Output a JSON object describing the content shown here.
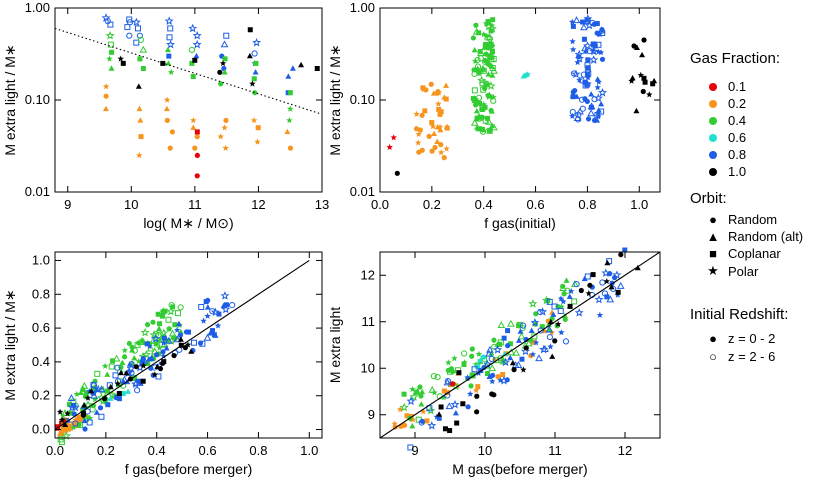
{
  "chart_data": [
    {
      "type": "scatter",
      "xlabel": "log( M∗ / M⊙)",
      "ylabel": "M extra light / M∗",
      "xlim": [
        8.8,
        13.0
      ],
      "ylim": [
        0.01,
        1.0
      ],
      "yscale": "log",
      "xticks": [
        "9",
        "10",
        "11",
        "12",
        "13"
      ],
      "yticks": [
        "0.01",
        "0.10",
        "1.00"
      ],
      "fit_line": {
        "style": "dotted",
        "x": [
          8.8,
          13.0
        ],
        "y": [
          0.6,
          0.07
        ]
      },
      "columns": [
        {
          "x": 9.65,
          "color": "blue",
          "y": [
            0.78,
            0.72,
            0.66
          ]
        },
        {
          "x": 9.85,
          "color": "black",
          "y": [
            0.28,
            0.25
          ]
        },
        {
          "x": 9.95,
          "color": "blue",
          "y": [
            0.75,
            0.7,
            0.62,
            0.5
          ]
        },
        {
          "x": 9.65,
          "color": "green",
          "y": [
            0.5,
            0.4,
            0.33,
            0.28,
            0.22
          ]
        },
        {
          "x": 9.62,
          "color": "orange",
          "y": [
            0.14,
            0.11,
            0.08
          ]
        },
        {
          "x": 10.1,
          "color": "blue",
          "y": [
            0.7,
            0.6,
            0.5,
            0.42
          ]
        },
        {
          "x": 10.15,
          "color": "green",
          "y": [
            0.45,
            0.35,
            0.28,
            0.22
          ]
        },
        {
          "x": 10.15,
          "color": "black",
          "y": [
            0.14
          ]
        },
        {
          "x": 10.15,
          "color": "orange",
          "y": [
            0.08,
            0.06,
            0.04,
            0.025
          ]
        },
        {
          "x": 10.6,
          "color": "blue",
          "y": [
            0.72,
            0.6,
            0.48,
            0.4,
            0.3
          ]
        },
        {
          "x": 10.6,
          "color": "green",
          "y": [
            0.35,
            0.25,
            0.2
          ]
        },
        {
          "x": 10.6,
          "color": "orange",
          "y": [
            0.1,
            0.08,
            0.06,
            0.045,
            0.03
          ]
        },
        {
          "x": 10.5,
          "color": "black",
          "y": [
            0.25
          ]
        },
        {
          "x": 11.0,
          "color": "blue",
          "y": [
            0.6,
            0.5,
            0.4,
            0.3
          ]
        },
        {
          "x": 11.0,
          "color": "green",
          "y": [
            0.35,
            0.25,
            0.18
          ]
        },
        {
          "x": 11.0,
          "color": "black",
          "y": [
            0.27
          ]
        },
        {
          "x": 11.0,
          "color": "orange",
          "y": [
            0.06,
            0.05,
            0.04,
            0.03
          ]
        },
        {
          "x": 11.0,
          "color": "red",
          "y": [
            0.045,
            0.025,
            0.015
          ]
        },
        {
          "x": 11.45,
          "color": "blue",
          "y": [
            0.5,
            0.4,
            0.3,
            0.22
          ]
        },
        {
          "x": 11.45,
          "color": "green",
          "y": [
            0.28,
            0.2,
            0.15
          ]
        },
        {
          "x": 11.45,
          "color": "orange",
          "y": [
            0.06,
            0.05,
            0.04,
            0.03
          ]
        },
        {
          "x": 11.4,
          "color": "black",
          "y": [
            0.25,
            0.2
          ]
        },
        {
          "x": 11.95,
          "color": "blue",
          "y": [
            0.42,
            0.32,
            0.25,
            0.2
          ]
        },
        {
          "x": 11.95,
          "color": "green",
          "y": [
            0.25,
            0.17,
            0.12
          ]
        },
        {
          "x": 11.95,
          "color": "orange",
          "y": [
            0.06,
            0.05,
            0.035
          ]
        },
        {
          "x": 11.9,
          "color": "black",
          "y": [
            0.58,
            0.3,
            0.15
          ]
        },
        {
          "x": 12.5,
          "color": "blue",
          "y": [
            0.22,
            0.18,
            0.12
          ]
        },
        {
          "x": 12.5,
          "color": "green",
          "y": [
            0.12,
            0.08,
            0.06
          ]
        },
        {
          "x": 12.5,
          "color": "orange",
          "y": [
            0.045,
            0.03
          ]
        },
        {
          "x": 12.65,
          "color": "black",
          "y": [
            0.24
          ]
        },
        {
          "x": 12.95,
          "color": "black",
          "y": [
            0.22
          ]
        }
      ]
    },
    {
      "type": "scatter",
      "xlabel": "f gas(initial)",
      "ylabel": "M extra light / M∗",
      "xlim": [
        0.0,
        1.08
      ],
      "ylim": [
        0.01,
        1.0
      ],
      "yscale": "log",
      "xticks": [
        "0.0",
        "0.2",
        "0.4",
        "0.6",
        "0.8",
        "1.0"
      ],
      "yticks": [
        "0.01",
        "0.10",
        "1.00"
      ],
      "clusters": [
        {
          "color": "red",
          "x": [
            0.02,
            0.06
          ],
          "y": [
            0.03,
            0.04
          ],
          "n": 2
        },
        {
          "color": "black",
          "x": [
            0.06,
            0.07
          ],
          "y": [
            0.015,
            0.016
          ],
          "n": 1
        },
        {
          "color": "orange",
          "x": [
            0.14,
            0.26
          ],
          "y": [
            0.022,
            0.15
          ],
          "n": 40
        },
        {
          "color": "green",
          "x": [
            0.36,
            0.44
          ],
          "y": [
            0.045,
            0.75
          ],
          "n": 110
        },
        {
          "color": "cyan",
          "x": [
            0.55,
            0.6
          ],
          "y": [
            0.16,
            0.24
          ],
          "n": 3
        },
        {
          "color": "blue",
          "x": [
            0.74,
            0.86
          ],
          "y": [
            0.06,
            0.78
          ],
          "n": 90
        },
        {
          "color": "black",
          "x": [
            0.97,
            1.06
          ],
          "y": [
            0.06,
            0.58
          ],
          "n": 14
        }
      ]
    },
    {
      "type": "scatter",
      "xlabel": "f gas(before merger)",
      "ylabel": "M extra light / M∗",
      "xlim": [
        0.0,
        1.05
      ],
      "ylim": [
        -0.05,
        1.05
      ],
      "xticks": [
        "0.0",
        "0.2",
        "0.4",
        "0.6",
        "0.8",
        "1.0"
      ],
      "yticks": [
        "0.0",
        "0.2",
        "0.4",
        "0.6",
        "0.8",
        "1.0"
      ],
      "fit_line": {
        "style": "solid",
        "x": [
          0.0,
          1.0
        ],
        "y": [
          0.0,
          1.0
        ]
      },
      "clusters": [
        {
          "color": "red",
          "x": [
            0.0,
            0.04
          ],
          "y": [
            0.0,
            0.05
          ],
          "n": 5
        },
        {
          "color": "orange",
          "x": [
            0.02,
            0.12
          ],
          "y": [
            -0.02,
            0.08
          ],
          "n": 50
        },
        {
          "color": "green",
          "x": [
            0.02,
            0.5
          ],
          "y": [
            0.0,
            0.7
          ],
          "n": 120
        },
        {
          "color": "cyan",
          "x": [
            0.2,
            0.35
          ],
          "y": [
            0.15,
            0.3
          ],
          "n": 3
        },
        {
          "color": "blue",
          "x": [
            0.05,
            0.7
          ],
          "y": [
            0.05,
            0.75
          ],
          "n": 100
        },
        {
          "color": "black",
          "x": [
            0.02,
            0.55
          ],
          "y": [
            0.05,
            0.55
          ],
          "n": 30
        }
      ]
    },
    {
      "type": "scatter",
      "xlabel": "M gas(before merger)",
      "ylabel": "M extra light",
      "xlim": [
        8.5,
        12.5
      ],
      "ylim": [
        8.5,
        12.5
      ],
      "xticks": [
        "9",
        "10",
        "11",
        "12"
      ],
      "yticks": [
        "9",
        "10",
        "11",
        "12"
      ],
      "fit_line": {
        "style": "solid",
        "x": [
          8.5,
          12.5
        ],
        "y": [
          8.5,
          12.5
        ]
      },
      "clusters": [
        {
          "color": "orange",
          "x": [
            8.7,
            11.0
          ],
          "y": [
            8.8,
            10.9
          ],
          "n": 30
        },
        {
          "color": "green",
          "x": [
            8.8,
            11.3
          ],
          "y": [
            9.0,
            11.6
          ],
          "n": 90
        },
        {
          "color": "cyan",
          "x": [
            9.6,
            10.4
          ],
          "y": [
            9.8,
            10.5
          ],
          "n": 4
        },
        {
          "color": "blue",
          "x": [
            8.9,
            12.0
          ],
          "y": [
            8.8,
            12.0
          ],
          "n": 90
        },
        {
          "color": "black",
          "x": [
            9.1,
            12.3
          ],
          "y": [
            8.8,
            12.3
          ],
          "n": 30
        },
        {
          "color": "red",
          "x": [
            9.4,
            9.6
          ],
          "y": [
            9.5,
            9.7
          ],
          "n": 1
        }
      ]
    }
  ],
  "palette": {
    "red": "#e8000b",
    "orange": "#f7941d",
    "green": "#33cc33",
    "cyan": "#22e0d0",
    "blue": "#1e5ee6",
    "black": "#000000"
  },
  "legend": {
    "gas_title": "Gas Fraction:",
    "gas_items": [
      {
        "label": "0.1",
        "color": "#e8000b"
      },
      {
        "label": "0.2",
        "color": "#f7941d"
      },
      {
        "label": "0.4",
        "color": "#33cc33"
      },
      {
        "label": "0.6",
        "color": "#22e0d0"
      },
      {
        "label": "0.8",
        "color": "#1e5ee6"
      },
      {
        "label": "1.0",
        "color": "#000000"
      }
    ],
    "orbit_title": "Orbit:",
    "orbit_items": [
      {
        "label": "Random",
        "symbol": "circle-icon"
      },
      {
        "label": "Random (alt)",
        "symbol": "triangle-icon"
      },
      {
        "label": "Coplanar",
        "symbol": "square-icon"
      },
      {
        "label": "Polar",
        "symbol": "star-icon"
      }
    ],
    "z_title": "Initial Redshift:",
    "z_items": [
      {
        "label": "z = 0 - 2",
        "symbol": "filled-circle-icon"
      },
      {
        "label": "z = 2 - 6",
        "symbol": "open-circle-icon"
      }
    ]
  }
}
